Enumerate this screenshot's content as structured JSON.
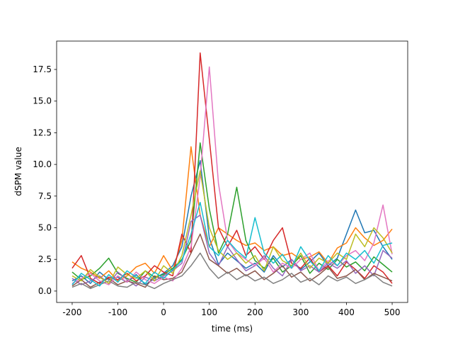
{
  "chart_data": {
    "type": "line",
    "xlabel": "time (ms)",
    "ylabel": "dSPM value",
    "x": [
      -200,
      -180,
      -160,
      -140,
      -120,
      -100,
      -80,
      -60,
      -40,
      -20,
      0,
      20,
      40,
      60,
      80,
      100,
      120,
      140,
      160,
      180,
      200,
      220,
      240,
      260,
      280,
      300,
      320,
      340,
      360,
      380,
      400,
      420,
      440,
      460,
      480,
      500
    ],
    "series": [
      {
        "color": "#1f77b4",
        "values": [
          0.8,
          1.2,
          0.6,
          1.5,
          0.9,
          1.1,
          0.7,
          1.3,
          0.5,
          1.0,
          1.4,
          2.0,
          3.5,
          7.5,
          10.3,
          4.2,
          2.1,
          3.0,
          2.4,
          1.8,
          2.2,
          1.5,
          2.8,
          1.9,
          2.5,
          1.7,
          2.3,
          3.0,
          2.0,
          2.6,
          4.5,
          6.4,
          4.6,
          4.8,
          3.5,
          2.5
        ]
      },
      {
        "color": "#ff7f0e",
        "values": [
          2.3,
          1.8,
          1.5,
          1.0,
          1.6,
          0.8,
          1.2,
          1.9,
          2.2,
          1.4,
          2.8,
          1.6,
          4.0,
          11.4,
          6.0,
          3.5,
          5.0,
          4.5,
          4.0,
          3.6,
          3.8,
          3.2,
          3.5,
          2.8,
          3.0,
          2.5,
          2.7,
          3.1,
          2.2,
          3.4,
          3.8,
          5.0,
          4.2,
          3.6,
          4.0,
          4.9
        ]
      },
      {
        "color": "#2ca02c",
        "values": [
          1.5,
          0.9,
          1.2,
          1.8,
          2.6,
          1.4,
          1.0,
          0.7,
          1.6,
          1.1,
          1.3,
          1.8,
          2.5,
          4.0,
          11.7,
          6.5,
          3.0,
          4.5,
          8.2,
          4.0,
          2.4,
          1.8,
          2.6,
          1.5,
          2.0,
          2.8,
          1.4,
          2.2,
          1.7,
          2.5,
          1.9,
          2.3,
          1.6,
          2.7,
          2.1,
          1.5
        ]
      },
      {
        "color": "#d62728",
        "values": [
          1.8,
          2.8,
          1.0,
          0.6,
          1.1,
          0.9,
          1.4,
          0.8,
          1.2,
          2.0,
          1.5,
          1.2,
          4.5,
          3.0,
          18.8,
          12.0,
          5.0,
          3.5,
          4.8,
          2.8,
          3.5,
          2.5,
          4.0,
          5.0,
          2.2,
          1.8,
          2.6,
          1.5,
          2.0,
          1.2,
          2.3,
          1.7,
          1.0,
          2.0,
          1.5,
          0.6
        ]
      },
      {
        "color": "#9467bd",
        "values": [
          1.0,
          0.5,
          0.8,
          1.2,
          0.6,
          1.5,
          0.9,
          0.4,
          1.1,
          0.8,
          1.2,
          1.6,
          2.2,
          5.5,
          6.0,
          3.0,
          2.0,
          3.5,
          2.5,
          1.6,
          2.0,
          2.8,
          1.8,
          1.2,
          2.5,
          1.6,
          2.0,
          1.5,
          2.2,
          1.8,
          2.4,
          1.4,
          2.0,
          1.2,
          3.2,
          2.6
        ]
      },
      {
        "color": "#8c564b",
        "values": [
          0.4,
          0.9,
          0.3,
          0.7,
          1.0,
          0.5,
          0.8,
          0.6,
          0.3,
          1.2,
          0.9,
          1.0,
          1.5,
          3.0,
          4.5,
          2.5,
          2.0,
          1.4,
          1.8,
          1.2,
          1.6,
          0.9,
          1.4,
          2.0,
          1.1,
          1.5,
          0.8,
          1.3,
          1.9,
          1.0,
          1.2,
          1.7,
          0.9,
          1.4,
          1.1,
          0.8
        ]
      },
      {
        "color": "#e377c2",
        "values": [
          0.6,
          1.0,
          1.4,
          0.8,
          0.5,
          1.2,
          0.7,
          1.5,
          0.9,
          0.6,
          1.1,
          0.8,
          1.8,
          3.5,
          9.0,
          17.7,
          8.5,
          4.0,
          3.0,
          2.5,
          2.0,
          2.6,
          1.5,
          2.2,
          1.8,
          2.5,
          3.0,
          1.6,
          2.4,
          2.0,
          2.8,
          3.2,
          2.4,
          3.8,
          6.8,
          2.9
        ]
      },
      {
        "color": "#7f7f7f",
        "values": [
          0.3,
          0.6,
          0.2,
          0.5,
          0.8,
          0.4,
          0.3,
          0.7,
          0.5,
          0.2,
          0.6,
          0.9,
          1.2,
          2.0,
          3.0,
          1.8,
          1.0,
          1.5,
          0.9,
          1.3,
          0.8,
          1.1,
          0.6,
          0.9,
          1.4,
          0.7,
          1.0,
          0.5,
          1.2,
          0.8,
          1.1,
          0.6,
          0.9,
          1.3,
          0.7,
          0.4
        ]
      },
      {
        "color": "#bcbd22",
        "values": [
          1.2,
          0.8,
          1.7,
          1.1,
          0.6,
          1.9,
          1.3,
          1.0,
          1.6,
          0.8,
          2.0,
          1.4,
          2.8,
          6.0,
          9.5,
          5.0,
          3.2,
          2.5,
          3.0,
          2.2,
          2.8,
          1.6,
          3.5,
          2.4,
          2.0,
          3.0,
          1.8,
          2.6,
          2.2,
          3.0,
          2.5,
          4.5,
          3.5,
          5.0,
          4.2,
          3.0
        ]
      },
      {
        "color": "#17becf",
        "values": [
          0.5,
          1.4,
          0.9,
          0.4,
          1.3,
          0.7,
          1.6,
          1.1,
          0.6,
          1.5,
          1.0,
          1.7,
          2.4,
          4.5,
          7.0,
          3.5,
          2.8,
          4.0,
          3.2,
          2.6,
          5.8,
          3.0,
          2.2,
          2.9,
          1.8,
          3.5,
          2.4,
          1.6,
          2.8,
          2.0,
          3.0,
          2.5,
          3.2,
          2.2,
          3.6,
          3.8
        ]
      }
    ],
    "xlim": [
      -234,
      534
    ],
    "ylim": [
      -0.9,
      19.74
    ],
    "xticks": [
      -200,
      -100,
      0,
      100,
      200,
      300,
      400,
      500
    ],
    "yticks": [
      {
        "value": 0,
        "label": "0.0"
      },
      2.5,
      {
        "value": 5,
        "label": "5.0"
      },
      7.5,
      {
        "value": 10,
        "label": "10.0"
      },
      12.5,
      {
        "value": 15,
        "label": "15.0"
      },
      17.5
    ],
    "grid": false
  }
}
